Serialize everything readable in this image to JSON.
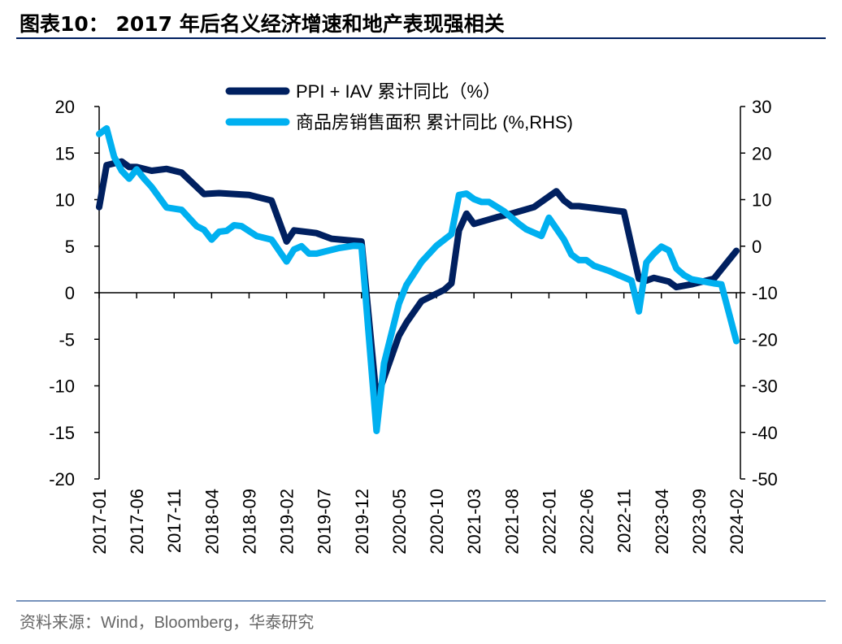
{
  "title": "图表10：  2017 年后名义经济增速和地产表现强相关",
  "source": "资料来源：Wind，Bloomberg，华泰研究",
  "chart_data": {
    "type": "line",
    "title": "图表10：  2017 年后名义经济增速和地产表现强相关",
    "xlabel": "",
    "ylabel": "",
    "ylim": [
      -20,
      20
    ],
    "y2lim": [
      -50,
      30
    ],
    "yticks": [
      "20",
      "15",
      "10",
      "5",
      "0",
      "-5",
      "-10",
      "-15",
      "-20"
    ],
    "y2ticks": [
      "30",
      "20",
      "10",
      "0",
      "-10",
      "-20",
      "-30",
      "-40",
      "-50"
    ],
    "xticks": [
      "2017-01",
      "2017-06",
      "2017-11",
      "2018-04",
      "2018-09",
      "2019-02",
      "2019-07",
      "2019-12",
      "2020-05",
      "2020-10",
      "2021-03",
      "2021-08",
      "2022-01",
      "2022-06",
      "2022-11",
      "2023-04",
      "2023-09",
      "2024-02"
    ],
    "grid": false,
    "legend_position": "top-right",
    "series": [
      {
        "name": "PPI + IAV 累计同比（%）",
        "axis": "left",
        "color": "#002060",
        "points": [
          [
            "2017-01",
            9.2
          ],
          [
            "2017-02",
            13.7
          ],
          [
            "2017-04",
            14.1
          ],
          [
            "2017-05",
            13.5
          ],
          [
            "2017-06",
            13.5
          ],
          [
            "2017-08",
            13.1
          ],
          [
            "2017-10",
            13.3
          ],
          [
            "2017-12",
            12.9
          ],
          [
            "2018-03",
            10.6
          ],
          [
            "2018-05",
            10.7
          ],
          [
            "2018-09",
            10.5
          ],
          [
            "2018-12",
            9.9
          ],
          [
            "2019-02",
            5.5
          ],
          [
            "2019-03",
            6.7
          ],
          [
            "2019-06",
            6.4
          ],
          [
            "2019-08",
            5.8
          ],
          [
            "2019-12",
            5.5
          ],
          [
            "2020-02",
            -11.4
          ],
          [
            "2020-05",
            -4.6
          ],
          [
            "2020-06",
            -3.2
          ],
          [
            "2020-08",
            -0.9
          ],
          [
            "2020-11",
            0.3
          ],
          [
            "2020-12",
            1.0
          ],
          [
            "2021-01",
            6.7
          ],
          [
            "2021-02",
            8.5
          ],
          [
            "2021-03",
            7.4
          ],
          [
            "2021-06",
            8.1
          ],
          [
            "2021-08",
            8.5
          ],
          [
            "2021-11",
            9.2
          ],
          [
            "2022-02",
            10.9
          ],
          [
            "2022-03",
            9.9
          ],
          [
            "2022-04",
            9.3
          ],
          [
            "2022-05",
            9.3
          ],
          [
            "2022-11",
            8.7
          ],
          [
            "2023-01",
            1.5
          ],
          [
            "2023-02",
            1.3
          ],
          [
            "2023-03",
            1.6
          ],
          [
            "2023-05",
            1.2
          ],
          [
            "2023-06",
            0.6
          ],
          [
            "2023-08",
            0.9
          ],
          [
            "2023-11",
            1.5
          ],
          [
            "2024-02",
            4.5
          ]
        ]
      },
      {
        "name": "商品房销售面积 累计同比 (%,RHS)",
        "axis": "right",
        "color": "#00B0F0",
        "points": [
          [
            "2017-01",
            24.1
          ],
          [
            "2017-02",
            25.3
          ],
          [
            "2017-03",
            19.2
          ],
          [
            "2017-04",
            16.2
          ],
          [
            "2017-05",
            14.5
          ],
          [
            "2017-06",
            16.5
          ],
          [
            "2017-07",
            14.5
          ],
          [
            "2017-08",
            12.7
          ],
          [
            "2017-10",
            8.3
          ],
          [
            "2017-12",
            7.8
          ],
          [
            "2018-02",
            4.3
          ],
          [
            "2018-03",
            3.5
          ],
          [
            "2018-04",
            1.4
          ],
          [
            "2018-05",
            3.1
          ],
          [
            "2018-06",
            3.3
          ],
          [
            "2018-07",
            4.5
          ],
          [
            "2018-08",
            4.3
          ],
          [
            "2018-10",
            2.2
          ],
          [
            "2018-12",
            1.4
          ],
          [
            "2019-02",
            -3.3
          ],
          [
            "2019-03",
            -0.7
          ],
          [
            "2019-04",
            0.0
          ],
          [
            "2019-05",
            -1.6
          ],
          [
            "2019-06",
            -1.6
          ],
          [
            "2019-09",
            -0.4
          ],
          [
            "2019-11",
            0.1
          ],
          [
            "2019-12",
            0.0
          ],
          [
            "2020-02",
            -39.7
          ],
          [
            "2020-03",
            -25.2
          ],
          [
            "2020-05",
            -12.3
          ],
          [
            "2020-06",
            -8.3
          ],
          [
            "2020-08",
            -3.4
          ],
          [
            "2020-10",
            0.1
          ],
          [
            "2020-12",
            2.6
          ],
          [
            "2021-01",
            11.0
          ],
          [
            "2021-02",
            11.3
          ],
          [
            "2021-03",
            10.1
          ],
          [
            "2021-04",
            9.5
          ],
          [
            "2021-05",
            9.5
          ],
          [
            "2021-07",
            7.5
          ],
          [
            "2021-09",
            4.8
          ],
          [
            "2021-10",
            3.6
          ],
          [
            "2021-12",
            2.2
          ],
          [
            "2022-01",
            6.1
          ],
          [
            "2022-03",
            1.4
          ],
          [
            "2022-04",
            -1.8
          ],
          [
            "2022-05",
            -3.0
          ],
          [
            "2022-06",
            -3.0
          ],
          [
            "2022-07",
            -4.2
          ],
          [
            "2022-09",
            -5.3
          ],
          [
            "2022-12",
            -7.4
          ],
          [
            "2023-01",
            -14.0
          ],
          [
            "2023-02",
            -3.5
          ],
          [
            "2023-03",
            -1.6
          ],
          [
            "2023-04",
            -0.1
          ],
          [
            "2023-05",
            -0.9
          ],
          [
            "2023-06",
            -4.8
          ],
          [
            "2023-07",
            -6.2
          ],
          [
            "2023-08",
            -7.1
          ],
          [
            "2023-11",
            -8.0
          ],
          [
            "2023-12",
            -8.2
          ],
          [
            "2024-02",
            -20.4
          ]
        ]
      }
    ]
  }
}
